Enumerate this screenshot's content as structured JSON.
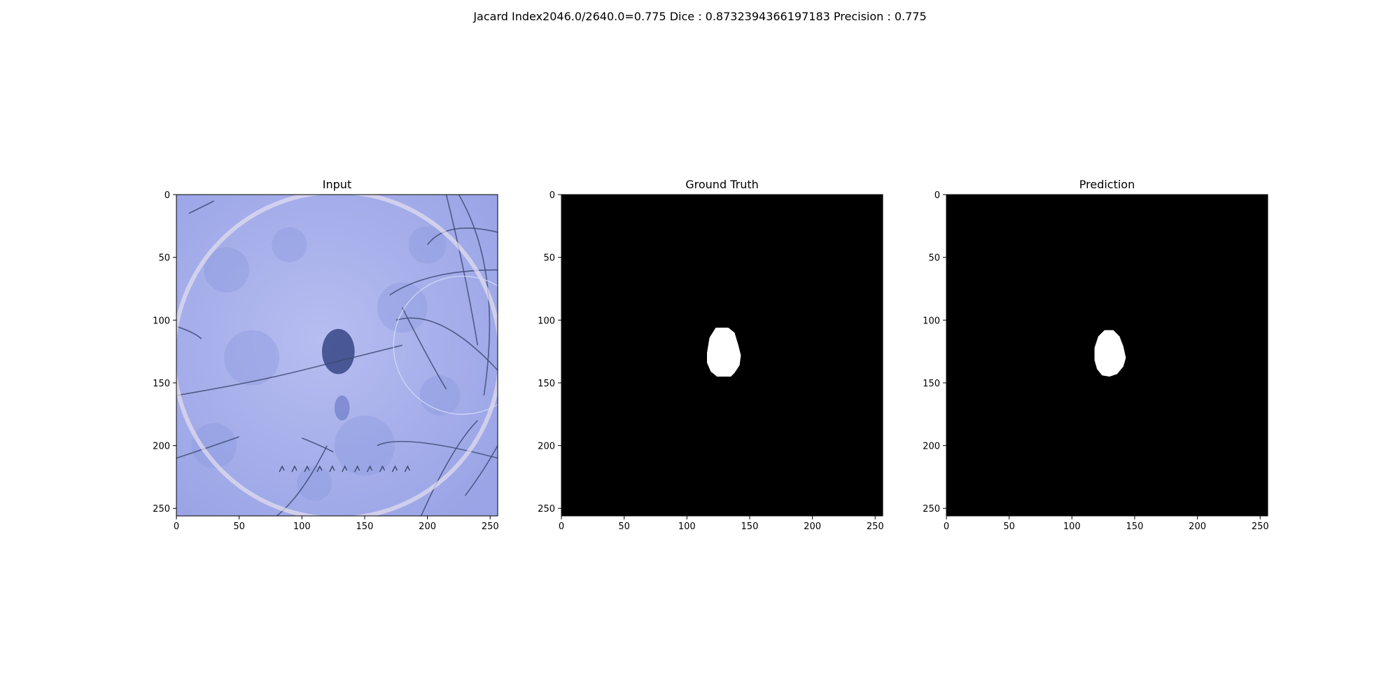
{
  "figure": {
    "suptitle": "Jacard Index2046.0/2640.0=0.775 Dice : 0.8732394366197183 Precision : 0.775"
  },
  "chart_data": [
    {
      "type": "image",
      "title": "Input",
      "xlim": [
        0,
        256
      ],
      "ylim": [
        256,
        0
      ],
      "xticks": [
        0,
        50,
        100,
        150,
        200,
        250
      ],
      "yticks": [
        0,
        50,
        100,
        150,
        200,
        250
      ],
      "content": "dermoscopy skin image with dark lesion",
      "colors": {
        "skin_light": "#b6bdf0",
        "skin_mid": "#9aa4e6",
        "lesion": "#3d4d8c",
        "hair": "#3a4670"
      },
      "lesion_center": [
        128,
        125
      ]
    },
    {
      "type": "image",
      "title": "Ground Truth",
      "xlim": [
        0,
        256
      ],
      "ylim": [
        256,
        0
      ],
      "xticks": [
        0,
        50,
        100,
        150,
        200,
        250
      ],
      "yticks": [
        0,
        50,
        100,
        150,
        200,
        250
      ],
      "content": "binary mask",
      "colors": {
        "background": "#000000",
        "foreground": "#ffffff"
      },
      "mask_polygon": [
        [
          123,
          106
        ],
        [
          133,
          106
        ],
        [
          138,
          110
        ],
        [
          141,
          120
        ],
        [
          143,
          128
        ],
        [
          142,
          136
        ],
        [
          138,
          142
        ],
        [
          135,
          145
        ],
        [
          124,
          145
        ],
        [
          119,
          141
        ],
        [
          116,
          134
        ],
        [
          116,
          126
        ],
        [
          118,
          114
        ]
      ]
    },
    {
      "type": "image",
      "title": "Prediction",
      "xlim": [
        0,
        256
      ],
      "ylim": [
        256,
        0
      ],
      "xticks": [
        0,
        50,
        100,
        150,
        200,
        250
      ],
      "yticks": [
        0,
        50,
        100,
        150,
        200,
        250
      ],
      "content": "binary mask",
      "colors": {
        "background": "#000000",
        "foreground": "#ffffff"
      },
      "mask_polygon": [
        [
          126,
          108
        ],
        [
          133,
          108
        ],
        [
          138,
          113
        ],
        [
          141,
          121
        ],
        [
          143,
          130
        ],
        [
          141,
          137
        ],
        [
          136,
          143
        ],
        [
          130,
          145
        ],
        [
          124,
          144
        ],
        [
          120,
          139
        ],
        [
          118,
          132
        ],
        [
          118,
          122
        ],
        [
          121,
          113
        ]
      ]
    }
  ]
}
